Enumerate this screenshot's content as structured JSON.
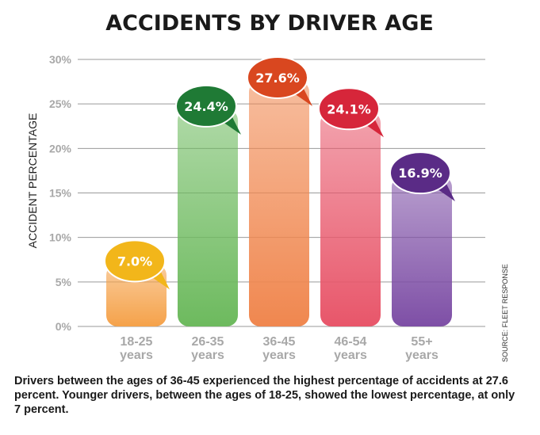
{
  "chart_data": {
    "type": "bar",
    "title": "ACCIDENTS BY DRIVER AGE",
    "xlabel": "",
    "ylabel": "ACCIDENT PERCENTAGE",
    "categories": [
      [
        "18-25",
        "years"
      ],
      [
        "26-35",
        "years"
      ],
      [
        "36-45",
        "years"
      ],
      [
        "46-54",
        "years"
      ],
      [
        "55+",
        "years"
      ]
    ],
    "values": [
      7.0,
      24.4,
      27.6,
      24.1,
      16.9
    ],
    "data_labels": [
      "7.0%",
      "24.4%",
      "27.6%",
      "24.1%",
      "16.9%"
    ],
    "ylim": [
      0,
      30
    ],
    "yticks": [
      0,
      5,
      10,
      15,
      20,
      25,
      30
    ],
    "ytick_labels": [
      "0%",
      "5%",
      "10%",
      "15%",
      "20%",
      "25%",
      "30%"
    ],
    "grid": true,
    "colors": {
      "bars": [
        "#f5a24a",
        "#6dba5e",
        "#f0874f",
        "#e8566a",
        "#7e4fa6"
      ],
      "bubbles": [
        "#f2b61a",
        "#1f7a35",
        "#d9471f",
        "#d6263a",
        "#5a2b86"
      ],
      "grid": "#9a9a9a",
      "axis_text": "#a8a8a8"
    }
  },
  "source": "SOURCE: FLEET RESPONSE",
  "caption": "Drivers between the ages of 36-45 experienced the highest percentage of accidents at 27.6 percent. Younger drivers, between the ages of 18-25, showed the lowest percentage, at only 7 percent."
}
